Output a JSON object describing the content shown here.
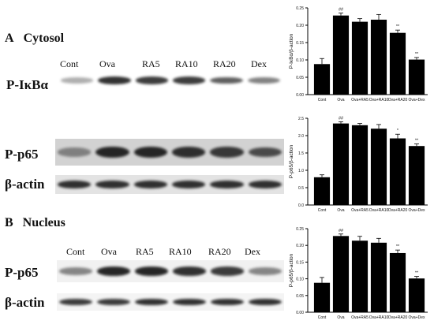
{
  "figure": {
    "sections": [
      {
        "letter": "A",
        "title": "Cytosol"
      },
      {
        "letter": "B",
        "title": "Nucleus"
      }
    ],
    "cytosol_lanes": [
      "Cont",
      "Ova",
      "RA5",
      "RA10",
      "RA20",
      "Dex"
    ],
    "nucleus_lanes": [
      "Cont",
      "Ova",
      "RA5",
      "RA10",
      "RA20",
      "Dex"
    ],
    "blot_labels": [
      "P-IκBα",
      "P-p65",
      "β-actin",
      "P-p65",
      "β-actin"
    ],
    "blots": [
      {
        "name": "cyto-pikba",
        "band_intensity": [
          0.35,
          0.9,
          0.85,
          0.85,
          0.7,
          0.55
        ]
      },
      {
        "name": "cyto-pp65",
        "band_intensity": [
          0.45,
          0.95,
          0.95,
          0.9,
          0.85,
          0.75
        ]
      },
      {
        "name": "cyto-actin",
        "band_intensity": [
          0.9,
          0.9,
          0.9,
          0.9,
          0.9,
          0.9
        ]
      },
      {
        "name": "nuc-pp65",
        "band_intensity": [
          0.5,
          0.95,
          0.95,
          0.9,
          0.85,
          0.5
        ]
      },
      {
        "name": "nuc-actin",
        "band_intensity": [
          0.85,
          0.85,
          0.9,
          0.9,
          0.9,
          0.9
        ]
      }
    ]
  },
  "chart_data": [
    {
      "type": "bar",
      "ylabel": "P-IκBα/β-action",
      "categories": [
        "Cont",
        "Ova",
        "Ova+RA5",
        "Ova+RA10",
        "Ova+RA20",
        "Ova+Dex"
      ],
      "values": [
        0.088,
        0.228,
        0.21,
        0.216,
        0.178,
        0.101
      ],
      "errors": [
        0.016,
        0.007,
        0.009,
        0.015,
        0.008,
        0.006
      ],
      "annotations": [
        "",
        "##",
        "",
        "",
        "**",
        "**"
      ],
      "ylim": [
        0,
        0.25
      ],
      "yticks": [
        "0.00",
        "0.05",
        "0.10",
        "0.15",
        "0.20",
        "0.25"
      ]
    },
    {
      "type": "bar",
      "ylabel": "P-p65/β-action",
      "categories": [
        "Cont",
        "Ova",
        "Ova+RA5",
        "Ova+RA10",
        "Ova+RA20",
        "Ova+Dex"
      ],
      "values": [
        0.8,
        2.35,
        2.3,
        2.2,
        1.92,
        1.7
      ],
      "errors": [
        0.07,
        0.05,
        0.05,
        0.12,
        0.12,
        0.06
      ],
      "annotations": [
        "",
        "##",
        "",
        "",
        "*",
        "**"
      ],
      "ylim": [
        0,
        2.5
      ],
      "yticks": [
        "0.0",
        "0.5",
        "1.0",
        "1.5",
        "2.0",
        "2.5"
      ]
    },
    {
      "type": "bar",
      "ylabel": "P-p65/β-action",
      "categories": [
        "Cont",
        "Ova",
        "Ova+RA5",
        "Ova+RA10",
        "Ova+RA20",
        "Ova+Dex"
      ],
      "values": [
        0.088,
        0.228,
        0.214,
        0.208,
        0.177,
        0.101
      ],
      "errors": [
        0.016,
        0.006,
        0.013,
        0.013,
        0.009,
        0.006
      ],
      "annotations": [
        "",
        "##",
        "",
        "",
        "**",
        "**"
      ],
      "ylim": [
        0,
        0.25
      ],
      "yticks": [
        "0.00",
        "0.05",
        "0.10",
        "0.15",
        "0.20",
        "0.25"
      ]
    }
  ]
}
